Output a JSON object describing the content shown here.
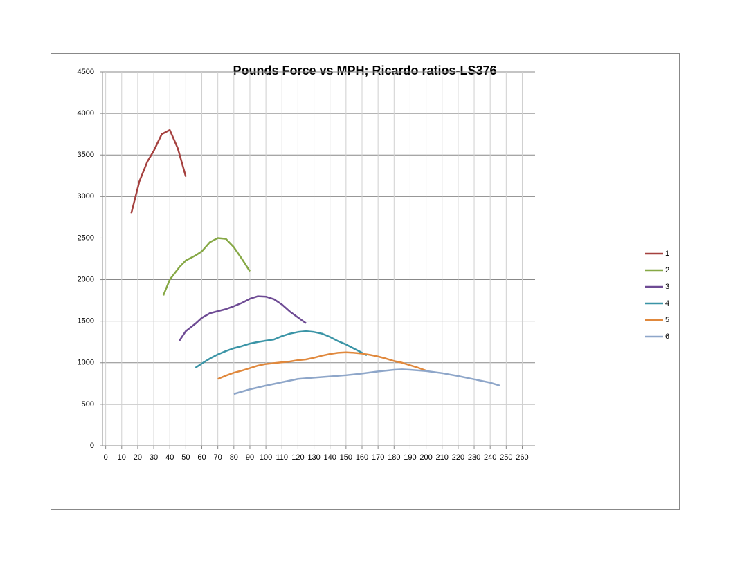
{
  "chart_data": {
    "type": "line",
    "title": "Pounds Force vs MPH; Ricardo ratios-LS376",
    "xlim": [
      -2,
      268
    ],
    "xticks": [
      0,
      10,
      20,
      30,
      40,
      50,
      60,
      70,
      80,
      90,
      100,
      110,
      120,
      130,
      140,
      150,
      160,
      170,
      180,
      190,
      200,
      210,
      220,
      230,
      240,
      250,
      260
    ],
    "ylim": [
      0,
      4500
    ],
    "yticks": [
      0,
      500,
      1000,
      1500,
      2000,
      2500,
      3000,
      3500,
      4000,
      4500
    ],
    "grid": true,
    "legend": "right",
    "series": [
      {
        "name": "1",
        "color": "#a5413f",
        "x": [
          16,
          21,
          26,
          30,
          35,
          40,
          45,
          50
        ],
        "values": [
          2800,
          3180,
          3420,
          3550,
          3750,
          3800,
          3580,
          3240
        ]
      },
      {
        "name": "2",
        "color": "#86a845",
        "x": [
          36,
          40,
          46,
          50,
          56,
          60,
          65,
          70,
          75,
          80,
          85,
          90
        ],
        "values": [
          1810,
          2000,
          2150,
          2230,
          2290,
          2340,
          2450,
          2500,
          2490,
          2390,
          2250,
          2100
        ]
      },
      {
        "name": "3",
        "color": "#6e4b94",
        "x": [
          46,
          50,
          56,
          60,
          65,
          70,
          75,
          80,
          85,
          90,
          95,
          100,
          105,
          110,
          115,
          120,
          125
        ],
        "values": [
          1265,
          1380,
          1470,
          1540,
          1595,
          1620,
          1645,
          1680,
          1720,
          1770,
          1800,
          1795,
          1765,
          1700,
          1615,
          1545,
          1475
        ]
      },
      {
        "name": "4",
        "color": "#3a94a6",
        "x": [
          56,
          60,
          65,
          70,
          75,
          80,
          85,
          90,
          95,
          100,
          105,
          110,
          115,
          120,
          125,
          130,
          135,
          140,
          145,
          150,
          155,
          160,
          163
        ],
        "values": [
          940,
          990,
          1050,
          1100,
          1140,
          1175,
          1200,
          1230,
          1250,
          1265,
          1280,
          1320,
          1350,
          1370,
          1380,
          1370,
          1350,
          1310,
          1260,
          1220,
          1170,
          1120,
          1090
        ]
      },
      {
        "name": "5",
        "color": "#e0883c",
        "x": [
          70,
          75,
          80,
          85,
          90,
          95,
          100,
          105,
          110,
          115,
          120,
          125,
          130,
          135,
          140,
          145,
          150,
          155,
          160,
          165,
          170,
          175,
          180,
          185,
          190,
          195,
          200
        ],
        "values": [
          805,
          845,
          880,
          905,
          935,
          965,
          985,
          995,
          1005,
          1015,
          1030,
          1040,
          1060,
          1085,
          1105,
          1120,
          1125,
          1120,
          1110,
          1095,
          1075,
          1050,
          1020,
          1000,
          970,
          940,
          905
        ]
      },
      {
        "name": "6",
        "color": "#8ea6c9",
        "x": [
          80,
          90,
          100,
          110,
          120,
          130,
          140,
          150,
          160,
          170,
          180,
          185,
          190,
          200,
          210,
          220,
          230,
          240,
          246
        ],
        "values": [
          625,
          680,
          725,
          765,
          805,
          820,
          835,
          850,
          870,
          895,
          915,
          920,
          915,
          900,
          875,
          840,
          800,
          760,
          725
        ]
      }
    ]
  }
}
